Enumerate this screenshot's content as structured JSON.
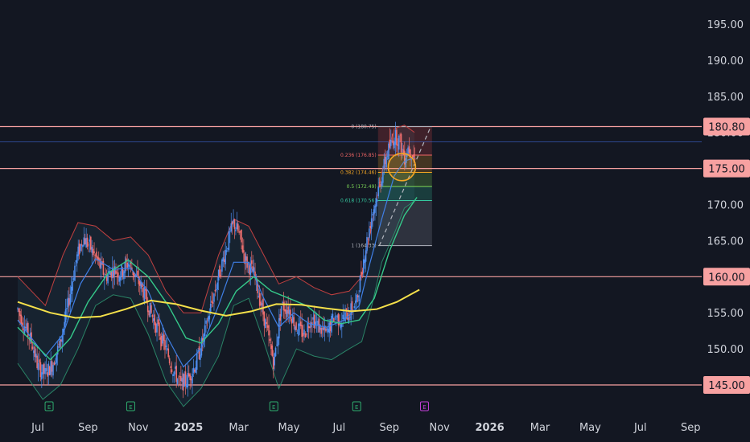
{
  "colors": {
    "background": "#131722",
    "axis_text": "#d1d4dc",
    "level_line": "#f7a1a1",
    "badge_bg": "#f7a1a1",
    "candle_up": "#4d8ef0",
    "candle_down": "#ef6f6f",
    "ma_yellow": "#f5e04a",
    "ma_green": "#35c98a",
    "ma_blue": "#3f7fe6",
    "bb_red": "#c04040",
    "circle": "#f5a623"
  },
  "chart_data": {
    "type": "candlestick",
    "ylim": [
      142.5,
      197.5
    ],
    "y_ticks": [
      145,
      150,
      155,
      160,
      165,
      170,
      175,
      180,
      185,
      190,
      195
    ],
    "y_tick_labels": [
      "145.00",
      "150.00",
      "155.00",
      "160.00",
      "165.00",
      "170.00",
      "175.00",
      "180.00",
      "185.00",
      "190.00",
      "195.00"
    ],
    "x_ticks": [
      {
        "label": "Jul",
        "month": 0
      },
      {
        "label": "Sep",
        "month": 2
      },
      {
        "label": "Nov",
        "month": 4
      },
      {
        "label": "2025",
        "month": 6,
        "year": true
      },
      {
        "label": "Mar",
        "month": 8
      },
      {
        "label": "May",
        "month": 10
      },
      {
        "label": "Jul",
        "month": 12
      },
      {
        "label": "Sep",
        "month": 14
      },
      {
        "label": "Nov",
        "month": 16
      },
      {
        "label": "2026",
        "month": 18,
        "year": true
      },
      {
        "label": "Mar",
        "month": 20
      },
      {
        "label": "May",
        "month": 22
      },
      {
        "label": "Jul",
        "month": 24
      },
      {
        "label": "Sep",
        "month": 26
      }
    ],
    "horizontal_levels": [
      {
        "value": 180.8,
        "label": "180.80"
      },
      {
        "value": 175.0,
        "label": "175.00"
      },
      {
        "value": 160.0,
        "label": "160.00"
      },
      {
        "value": 145.0,
        "label": "145.00"
      }
    ],
    "fibonacci": [
      {
        "ratio": "0",
        "value": 180.8,
        "label": "0 (180.75)",
        "color": "#b2b5be"
      },
      {
        "ratio": "0.236",
        "value": 176.85,
        "label": "0.236 (176.85)",
        "color": "#f06565"
      },
      {
        "ratio": "0.382",
        "value": 174.46,
        "label": "0.382 (174.46)",
        "color": "#f5a623"
      },
      {
        "ratio": "0.5",
        "value": 172.49,
        "label": "0.5 (172.49)",
        "color": "#7ed957"
      },
      {
        "ratio": "0.618",
        "value": 170.56,
        "label": "0.618 (170.56)",
        "color": "#35c9a0"
      },
      {
        "ratio": "1",
        "value": 164.3,
        "label": "1 (164.33)",
        "color": "#b2b5be"
      }
    ],
    "event_markers": [
      {
        "label": "E",
        "month": 0.45,
        "kind": "earnings"
      },
      {
        "label": "E",
        "month": 3.7,
        "kind": "earnings"
      },
      {
        "label": "E",
        "month": 9.4,
        "kind": "earnings"
      },
      {
        "label": "E",
        "month": 12.7,
        "kind": "earnings"
      },
      {
        "label": "E",
        "month": 15.4,
        "kind": "upcoming"
      }
    ],
    "price_path": [
      [
        -0.8,
        155.5
      ],
      [
        -0.5,
        153
      ],
      [
        -0.2,
        150.5
      ],
      [
        0,
        147.5
      ],
      [
        0.3,
        146.5
      ],
      [
        0.6,
        148
      ],
      [
        0.9,
        151
      ],
      [
        1.2,
        156
      ],
      [
        1.5,
        162
      ],
      [
        1.8,
        165.5
      ],
      [
        2.1,
        164
      ],
      [
        2.4,
        162
      ],
      [
        2.7,
        160
      ],
      [
        3.0,
        161
      ],
      [
        3.3,
        160.5
      ],
      [
        3.6,
        162
      ],
      [
        3.9,
        160
      ],
      [
        4.2,
        158
      ],
      [
        4.5,
        155
      ],
      [
        4.8,
        152.5
      ],
      [
        5.1,
        150
      ],
      [
        5.4,
        147
      ],
      [
        5.7,
        145
      ],
      [
        6.0,
        146
      ],
      [
        6.3,
        148
      ],
      [
        6.6,
        151.5
      ],
      [
        6.9,
        156
      ],
      [
        7.2,
        160
      ],
      [
        7.5,
        164
      ],
      [
        7.8,
        167.5
      ],
      [
        8.0,
        166
      ],
      [
        8.3,
        162
      ],
      [
        8.6,
        160.5
      ],
      [
        8.9,
        156
      ],
      [
        9.1,
        153
      ],
      [
        9.4,
        148
      ],
      [
        9.7,
        156
      ],
      [
        10.0,
        155.5
      ],
      [
        10.3,
        153
      ],
      [
        10.6,
        152
      ],
      [
        10.9,
        154.5
      ],
      [
        11.2,
        153
      ],
      [
        11.5,
        152
      ],
      [
        11.8,
        154.5
      ],
      [
        12.1,
        154
      ],
      [
        12.4,
        155
      ],
      [
        12.7,
        156.5
      ],
      [
        13.0,
        163
      ],
      [
        13.3,
        168.5
      ],
      [
        13.6,
        172.5
      ],
      [
        13.9,
        177
      ],
      [
        14.2,
        179.5
      ],
      [
        14.4,
        179
      ],
      [
        14.6,
        176.5
      ],
      [
        14.75,
        178
      ],
      [
        14.9,
        177
      ],
      [
        15.05,
        175.8
      ]
    ],
    "ma_yellow": [
      [
        -0.8,
        156.5
      ],
      [
        0.5,
        155
      ],
      [
        1.5,
        154.3
      ],
      [
        2.5,
        154.5
      ],
      [
        3.5,
        155.5
      ],
      [
        4.5,
        156.7
      ],
      [
        5.5,
        156.2
      ],
      [
        6.5,
        155.3
      ],
      [
        7.5,
        154.6
      ],
      [
        8.5,
        155.2
      ],
      [
        9.5,
        156.2
      ],
      [
        10.5,
        156.1
      ],
      [
        11.5,
        155.6
      ],
      [
        12.5,
        155.2
      ],
      [
        13.5,
        155.5
      ],
      [
        14.3,
        156.5
      ],
      [
        15.2,
        158.2
      ]
    ],
    "ma_green": [
      [
        -0.8,
        153
      ],
      [
        0.5,
        148.5
      ],
      [
        1.3,
        151.5
      ],
      [
        2.0,
        156.5
      ],
      [
        2.8,
        160.5
      ],
      [
        3.6,
        162.3
      ],
      [
        4.4,
        160
      ],
      [
        5.2,
        156
      ],
      [
        5.9,
        151.5
      ],
      [
        6.5,
        150.8
      ],
      [
        7.2,
        153.5
      ],
      [
        7.9,
        158
      ],
      [
        8.6,
        160
      ],
      [
        9.3,
        158
      ],
      [
        10.0,
        157
      ],
      [
        10.7,
        156
      ],
      [
        11.4,
        154
      ],
      [
        12.1,
        153.5
      ],
      [
        12.8,
        154
      ],
      [
        13.4,
        157
      ],
      [
        14.0,
        163.5
      ],
      [
        14.6,
        168.5
      ],
      [
        15.1,
        171
      ]
    ],
    "ma_blue": [
      [
        -0.8,
        154
      ],
      [
        0.3,
        149
      ],
      [
        1.0,
        152
      ],
      [
        1.7,
        159
      ],
      [
        2.3,
        162.5
      ],
      [
        3.0,
        161
      ],
      [
        3.7,
        161.2
      ],
      [
        4.4,
        158
      ],
      [
        5.1,
        152
      ],
      [
        5.8,
        147.5
      ],
      [
        6.5,
        150
      ],
      [
        7.2,
        156
      ],
      [
        7.8,
        162
      ],
      [
        8.4,
        162
      ],
      [
        9.0,
        157
      ],
      [
        9.6,
        153
      ],
      [
        10.2,
        155
      ],
      [
        10.8,
        153.5
      ],
      [
        11.5,
        153
      ],
      [
        12.2,
        154
      ],
      [
        12.8,
        156
      ],
      [
        13.2,
        161.5
      ],
      [
        13.7,
        168
      ],
      [
        14.2,
        174
      ],
      [
        14.6,
        176
      ],
      [
        15.0,
        176.5
      ]
    ],
    "bb_red_upper": [
      [
        -0.8,
        160
      ],
      [
        0.3,
        156
      ],
      [
        1.0,
        163
      ],
      [
        1.6,
        167.5
      ],
      [
        2.3,
        167
      ],
      [
        3.0,
        165
      ],
      [
        3.7,
        165.5
      ],
      [
        4.4,
        163
      ],
      [
        5.1,
        158
      ],
      [
        5.8,
        155
      ],
      [
        6.5,
        155
      ],
      [
        7.2,
        163
      ],
      [
        7.8,
        168
      ],
      [
        8.4,
        167
      ],
      [
        9.0,
        163
      ],
      [
        9.6,
        159
      ],
      [
        10.3,
        160
      ],
      [
        11.0,
        158.5
      ],
      [
        11.7,
        157.5
      ],
      [
        12.4,
        158
      ],
      [
        12.9,
        160
      ],
      [
        13.3,
        167
      ],
      [
        13.7,
        174.5
      ],
      [
        14.2,
        180.5
      ],
      [
        14.6,
        181
      ],
      [
        15.0,
        180
      ]
    ],
    "bb_green_lower": [
      [
        -0.8,
        148
      ],
      [
        0.2,
        143
      ],
      [
        0.9,
        145
      ],
      [
        1.6,
        150
      ],
      [
        2.3,
        156
      ],
      [
        3.0,
        157.5
      ],
      [
        3.7,
        157
      ],
      [
        4.4,
        152
      ],
      [
        5.1,
        145.5
      ],
      [
        5.8,
        142
      ],
      [
        6.5,
        144.5
      ],
      [
        7.2,
        149
      ],
      [
        7.8,
        156
      ],
      [
        8.4,
        157
      ],
      [
        9.0,
        151
      ],
      [
        9.6,
        144.5
      ],
      [
        10.3,
        150
      ],
      [
        11.0,
        149
      ],
      [
        11.7,
        148.5
      ],
      [
        12.4,
        150
      ],
      [
        12.9,
        151
      ],
      [
        13.3,
        156
      ],
      [
        13.7,
        162
      ],
      [
        14.2,
        166
      ],
      [
        14.6,
        169.5
      ],
      [
        15.0,
        170.5
      ]
    ],
    "forecast_box": {
      "x0": 13.55,
      "x1": 15.7,
      "top": 180.8,
      "bottom": 164.3,
      "zones": [
        {
          "top": 180.8,
          "bottom": 176.85,
          "color": "#e04a4a"
        },
        {
          "top": 176.85,
          "bottom": 174.46,
          "color": "#f5a623"
        },
        {
          "top": 174.46,
          "bottom": 172.49,
          "color": "#7ed957"
        },
        {
          "top": 172.49,
          "bottom": 170.56,
          "color": "#35c9a0"
        },
        {
          "top": 170.56,
          "bottom": 164.3,
          "color": "#9098a4"
        }
      ]
    },
    "trend_line": {
      "x0": 13.6,
      "y0": 164.3,
      "x1": 15.65,
      "y1": 180.8
    },
    "highlight_circle": {
      "month": 14.5,
      "value": 175.2
    },
    "thin_blue_level": 178.7
  }
}
